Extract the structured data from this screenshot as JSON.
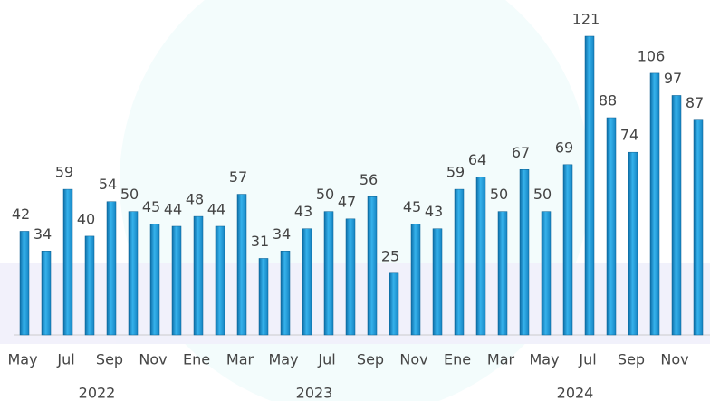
{
  "chart_data": {
    "type": "bar",
    "color": "#1e9ad6",
    "groups": [
      {
        "name": "2022",
        "categories": [
          "May",
          null,
          "Jul",
          null,
          "Sep",
          null,
          "Nov",
          null
        ],
        "values": [
          42,
          34,
          59,
          40,
          54,
          50,
          45,
          44
        ]
      },
      {
        "name": "2023",
        "categories": [
          "Ene",
          null,
          "Mar",
          null,
          "May",
          null,
          "Jul",
          null,
          "Sep",
          null,
          "Nov",
          null
        ],
        "values": [
          48,
          44,
          57,
          31,
          34,
          43,
          50,
          47,
          56,
          25,
          45,
          43
        ]
      },
      {
        "name": "2024",
        "categories": [
          "Ene",
          null,
          "Mar",
          null,
          "May",
          null,
          "Jul",
          null,
          "Sep",
          null,
          "Nov",
          null
        ],
        "values": [
          59,
          64,
          50,
          67,
          50,
          69,
          121,
          88,
          74,
          106,
          97,
          87
        ]
      }
    ]
  }
}
